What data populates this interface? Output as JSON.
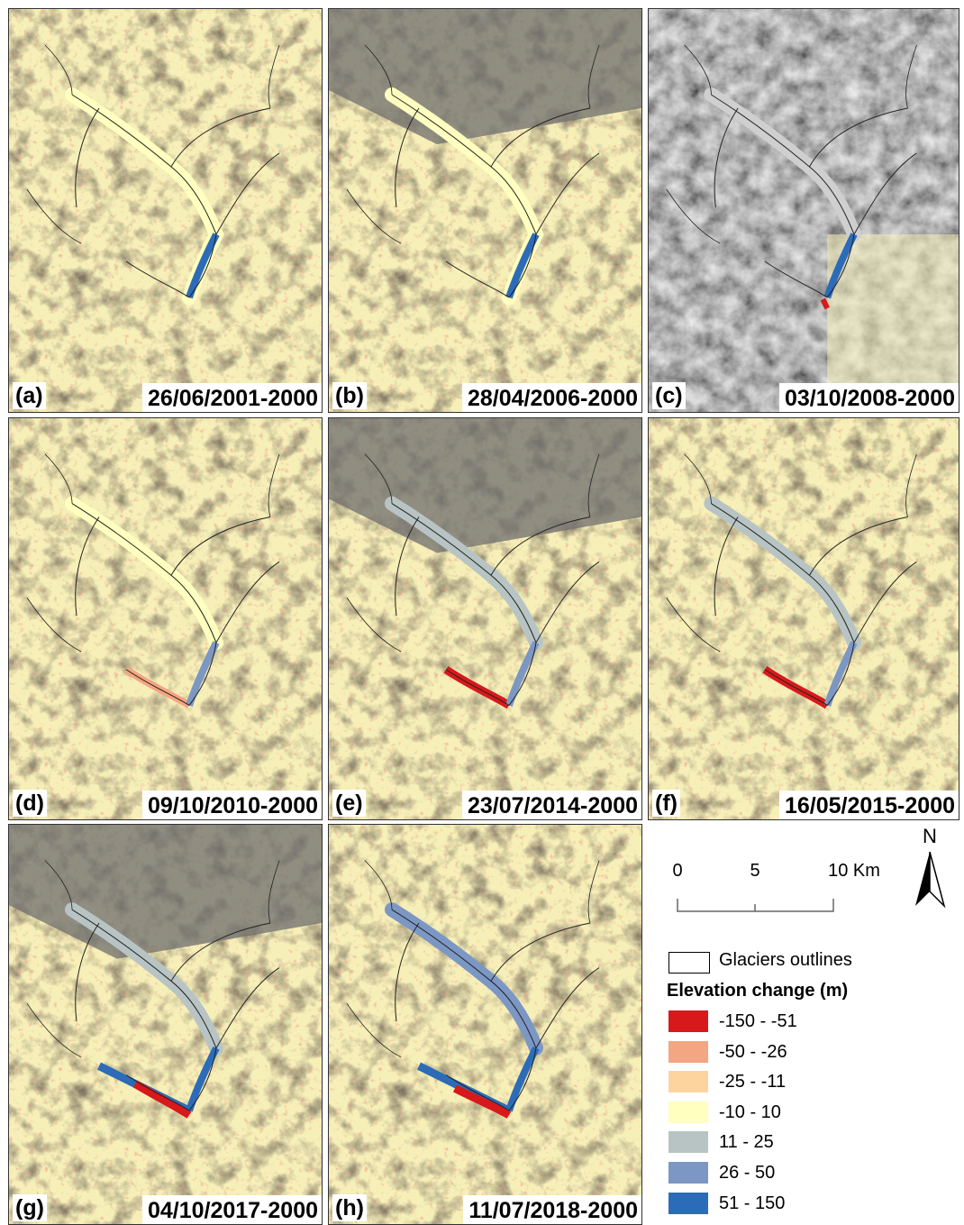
{
  "panels": [
    {
      "letter": "(a)",
      "date": "26/06/2001-2000"
    },
    {
      "letter": "(b)",
      "date": "28/04/2006-2000"
    },
    {
      "letter": "(c)",
      "date": "03/10/2008-2000"
    },
    {
      "letter": "(d)",
      "date": "09/10/2010-2000"
    },
    {
      "letter": "(e)",
      "date": "23/07/2014-2000"
    },
    {
      "letter": "(f)",
      "date": "16/05/2015-2000"
    },
    {
      "letter": "(g)",
      "date": "04/10/2017-2000"
    },
    {
      "letter": "(h)",
      "date": "11/07/2018-2000"
    }
  ],
  "scale": {
    "ticks": [
      "0",
      "5",
      "10 Km"
    ]
  },
  "north": {
    "label": "N",
    "icon": "north-arrow-icon"
  },
  "legend": {
    "outline_label": "Glaciers outlines",
    "title": "Elevation change (m)",
    "classes": [
      {
        "label": "-150 - -51",
        "color": "#d7191c"
      },
      {
        "label": "-50 - -26",
        "color": "#f4a582"
      },
      {
        "label": "-25 - -11",
        "color": "#fdd49e"
      },
      {
        "label": "-10 - 10",
        "color": "#ffffbf"
      },
      {
        "label": "11 - 25",
        "color": "#b8c4c4"
      },
      {
        "label": "26 - 50",
        "color": "#7c97c4"
      },
      {
        "label": "51 - 150",
        "color": "#2c6bb8"
      }
    ]
  }
}
